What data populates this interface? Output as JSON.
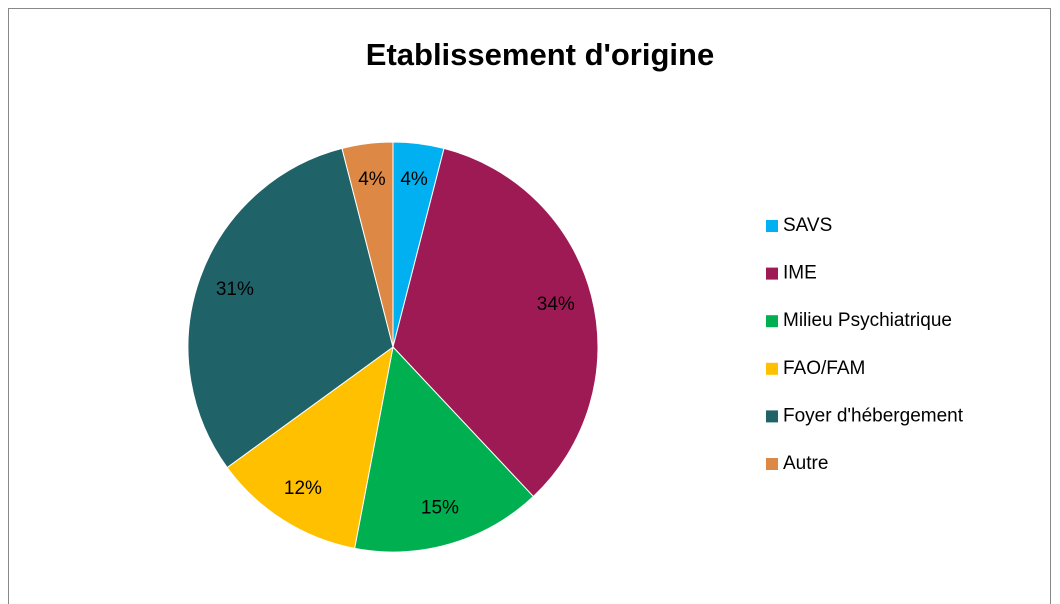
{
  "chart_data": {
    "type": "pie",
    "title": "Etablissement d'origine",
    "categories": [
      "SAVS",
      "IME",
      "Milieu Psychiatrique",
      "FAO/FAM",
      "Foyer d'hébergement",
      "Autre"
    ],
    "values": [
      4,
      34,
      15,
      12,
      31,
      4
    ],
    "value_labels": [
      "4%",
      "34%",
      "15%",
      "12%",
      "31%",
      "4%"
    ],
    "colors": [
      "#00b0f0",
      "#9e1a54",
      "#00b050",
      "#ffc000",
      "#1f6369",
      "#dd8844"
    ],
    "legend": "right"
  }
}
